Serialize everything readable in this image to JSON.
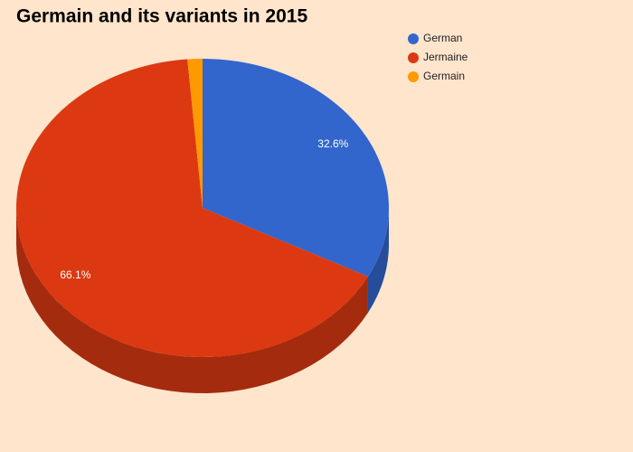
{
  "chart_data": {
    "type": "pie",
    "title": "Germain and its variants in 2015",
    "categories": [
      "German",
      "Jermaine",
      "Germain"
    ],
    "values": [
      32.6,
      66.1,
      1.3
    ],
    "value_labels": [
      "32.6%",
      "66.1%",
      null
    ],
    "colors": [
      "#3366cc",
      "#dc3912",
      "#ff9900"
    ],
    "legend": "top-right"
  }
}
